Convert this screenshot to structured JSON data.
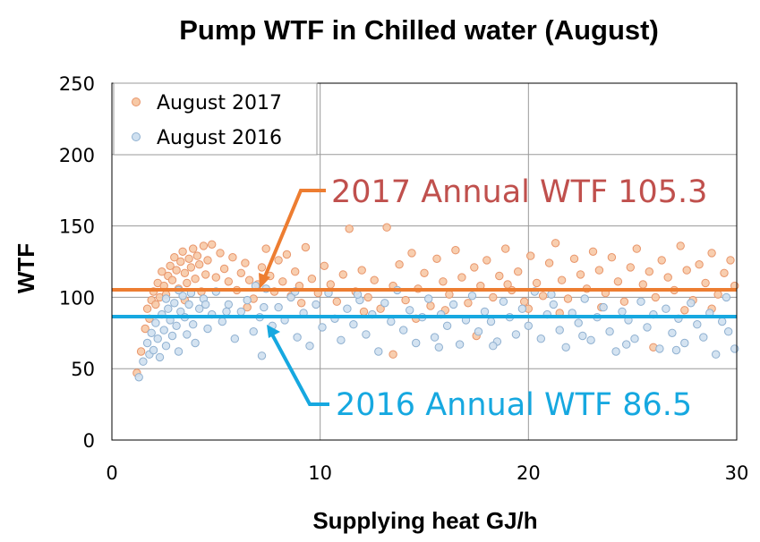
{
  "chart_data": {
    "type": "scatter",
    "title": "Pump WTF in Chilled water  (August)",
    "xlabel": "Supplying heat GJ/h",
    "ylabel": "WTF",
    "xlim": [
      0,
      30
    ],
    "ylim": [
      0,
      250
    ],
    "xticks": [
      "0",
      "10",
      "20",
      "30"
    ],
    "yticks": [
      "0",
      "50",
      "100",
      "150",
      "200",
      "250"
    ],
    "grid": true,
    "legend_position": "top-left",
    "colors": {
      "s2017_fill": "#f7c9a6",
      "s2017_edge": "#e8956a",
      "s2016_fill": "#cfe0f0",
      "s2016_edge": "#8fb0d0",
      "line2017": "#ed7d31",
      "line2016": "#16a8e0",
      "annot2017": "#c0504d",
      "annot2016": "#16a8e0",
      "grid": "#9a9a9a"
    },
    "series": [
      {
        "name": "August 2017",
        "points": [
          [
            1.2,
            47
          ],
          [
            1.4,
            62
          ],
          [
            1.6,
            78
          ],
          [
            1.7,
            92
          ],
          [
            1.8,
            85
          ],
          [
            1.9,
            98
          ],
          [
            2.0,
            104
          ],
          [
            2.1,
            95
          ],
          [
            2.2,
            110
          ],
          [
            2.3,
            100
          ],
          [
            2.4,
            118
          ],
          [
            2.5,
            108
          ],
          [
            2.6,
            102
          ],
          [
            2.7,
            115
          ],
          [
            2.8,
            122
          ],
          [
            2.9,
            112
          ],
          [
            3.0,
            128
          ],
          [
            3.1,
            119
          ],
          [
            3.2,
            106
          ],
          [
            3.3,
            125
          ],
          [
            3.4,
            132
          ],
          [
            3.5,
            117
          ],
          [
            3.6,
            110
          ],
          [
            3.7,
            127
          ],
          [
            3.8,
            121
          ],
          [
            3.9,
            134
          ],
          [
            4.0,
            113
          ],
          [
            4.1,
            129
          ],
          [
            4.2,
            123
          ],
          [
            4.4,
            136
          ],
          [
            4.5,
            116
          ],
          [
            4.6,
            126
          ],
          [
            4.8,
            137
          ],
          [
            5.0,
            114
          ],
          [
            5.2,
            131
          ],
          [
            5.4,
            120
          ],
          [
            5.6,
            111
          ],
          [
            5.8,
            128
          ],
          [
            6.0,
            105
          ],
          [
            6.2,
            117
          ],
          [
            6.4,
            124
          ],
          [
            6.6,
            112
          ],
          [
            6.8,
            99
          ],
          [
            7.0,
            109
          ],
          [
            7.2,
            121
          ],
          [
            7.4,
            134
          ],
          [
            7.6,
            115
          ],
          [
            7.8,
            104
          ],
          [
            8.0,
            126
          ],
          [
            8.2,
            111
          ],
          [
            8.4,
            130
          ],
          [
            8.6,
            101
          ],
          [
            8.8,
            118
          ],
          [
            9.0,
            108
          ],
          [
            9.3,
            135
          ],
          [
            9.6,
            113
          ],
          [
            9.9,
            103
          ],
          [
            10.2,
            122
          ],
          [
            10.5,
            109
          ],
          [
            10.8,
            97
          ],
          [
            11.1,
            116
          ],
          [
            11.4,
            148
          ],
          [
            11.7,
            104
          ],
          [
            12.0,
            119
          ],
          [
            12.3,
            100
          ],
          [
            12.6,
            112
          ],
          [
            12.9,
            92
          ],
          [
            13.2,
            149
          ],
          [
            13.5,
            108
          ],
          [
            13.8,
            123
          ],
          [
            14.1,
            98
          ],
          [
            14.4,
            131
          ],
          [
            14.7,
            106
          ],
          [
            15.0,
            117
          ],
          [
            15.3,
            94
          ],
          [
            15.6,
            127
          ],
          [
            15.9,
            111
          ],
          [
            16.2,
            102
          ],
          [
            16.5,
            133
          ],
          [
            16.8,
            114
          ],
          [
            17.1,
            96
          ],
          [
            17.4,
            121
          ],
          [
            17.7,
            108
          ],
          [
            18.0,
            126
          ],
          [
            18.3,
            100
          ],
          [
            18.6,
            115
          ],
          [
            18.9,
            134
          ],
          [
            19.2,
            105
          ],
          [
            19.5,
            118
          ],
          [
            19.8,
            97
          ],
          [
            20.1,
            129
          ],
          [
            20.4,
            110
          ],
          [
            20.7,
            101
          ],
          [
            21.0,
            124
          ],
          [
            21.3,
            138
          ],
          [
            21.6,
            112
          ],
          [
            21.9,
            99
          ],
          [
            22.2,
            127
          ],
          [
            22.5,
            116
          ],
          [
            22.8,
            106
          ],
          [
            23.1,
            132
          ],
          [
            23.4,
            119
          ],
          [
            23.7,
            103
          ],
          [
            24.0,
            128
          ],
          [
            24.3,
            111
          ],
          [
            24.6,
            97
          ],
          [
            24.9,
            121
          ],
          [
            25.2,
            134
          ],
          [
            25.5,
            109
          ],
          [
            25.8,
            118
          ],
          [
            26.1,
            100
          ],
          [
            26.4,
            126
          ],
          [
            26.7,
            114
          ],
          [
            27.0,
            105
          ],
          [
            27.3,
            136
          ],
          [
            27.6,
            119
          ],
          [
            27.9,
            98
          ],
          [
            28.2,
            123
          ],
          [
            28.5,
            110
          ],
          [
            28.8,
            131
          ],
          [
            29.1,
            102
          ],
          [
            29.4,
            117
          ],
          [
            29.7,
            126
          ],
          [
            29.9,
            108
          ],
          [
            3.5,
            98
          ],
          [
            4.3,
            104
          ],
          [
            6.5,
            93
          ],
          [
            9.1,
            96
          ],
          [
            12.1,
            90
          ],
          [
            16.0,
            91
          ],
          [
            20.0,
            92
          ],
          [
            23.5,
            93
          ],
          [
            27.5,
            91
          ],
          [
            13.5,
            60
          ],
          [
            17.5,
            73
          ],
          [
            26.0,
            65
          ],
          [
            28.8,
            92
          ],
          [
            21.5,
            89
          ],
          [
            14.6,
            85
          ],
          [
            19.0,
            109
          ]
        ]
      },
      {
        "name": "August 2016",
        "points": [
          [
            1.3,
            44
          ],
          [
            1.5,
            55
          ],
          [
            1.7,
            68
          ],
          [
            1.8,
            60
          ],
          [
            1.9,
            75
          ],
          [
            2.0,
            63
          ],
          [
            2.1,
            82
          ],
          [
            2.2,
            71
          ],
          [
            2.3,
            58
          ],
          [
            2.4,
            88
          ],
          [
            2.5,
            77
          ],
          [
            2.6,
            66
          ],
          [
            2.7,
            92
          ],
          [
            2.8,
            84
          ],
          [
            2.9,
            73
          ],
          [
            3.0,
            96
          ],
          [
            3.1,
            80
          ],
          [
            3.2,
            62
          ],
          [
            3.3,
            90
          ],
          [
            3.4,
            101
          ],
          [
            3.5,
            86
          ],
          [
            3.6,
            74
          ],
          [
            3.7,
            95
          ],
          [
            3.8,
            103
          ],
          [
            3.9,
            81
          ],
          [
            4.0,
            68
          ],
          [
            4.2,
            92
          ],
          [
            4.4,
            99
          ],
          [
            4.6,
            78
          ],
          [
            4.8,
            88
          ],
          [
            5.0,
            104
          ],
          [
            5.3,
            83
          ],
          [
            5.6,
            95
          ],
          [
            5.9,
            71
          ],
          [
            6.2,
            90
          ],
          [
            6.5,
            98
          ],
          [
            6.8,
            76
          ],
          [
            7.1,
            86
          ],
          [
            7.4,
            106
          ],
          [
            7.7,
            80
          ],
          [
            8.0,
            93
          ],
          [
            8.3,
            84
          ],
          [
            8.6,
            100
          ],
          [
            8.9,
            72
          ],
          [
            9.2,
            89
          ],
          [
            9.5,
            66
          ],
          [
            9.8,
            95
          ],
          [
            10.1,
            79
          ],
          [
            10.4,
            103
          ],
          [
            10.7,
            85
          ],
          [
            11.0,
            70
          ],
          [
            11.3,
            92
          ],
          [
            11.6,
            81
          ],
          [
            11.9,
            98
          ],
          [
            12.2,
            74
          ],
          [
            12.5,
            88
          ],
          [
            12.8,
            62
          ],
          [
            13.1,
            96
          ],
          [
            13.4,
            83
          ],
          [
            13.7,
            105
          ],
          [
            14.0,
            77
          ],
          [
            14.3,
            91
          ],
          [
            14.6,
            68
          ],
          [
            14.9,
            86
          ],
          [
            15.2,
            99
          ],
          [
            15.5,
            72
          ],
          [
            15.8,
            88
          ],
          [
            16.1,
            80
          ],
          [
            16.4,
            95
          ],
          [
            16.7,
            67
          ],
          [
            17.0,
            84
          ],
          [
            17.3,
            101
          ],
          [
            17.6,
            76
          ],
          [
            17.9,
            90
          ],
          [
            18.2,
            83
          ],
          [
            18.5,
            69
          ],
          [
            18.8,
            97
          ],
          [
            19.1,
            86
          ],
          [
            19.4,
            74
          ],
          [
            19.7,
            92
          ],
          [
            20.0,
            80
          ],
          [
            20.3,
            104
          ],
          [
            20.6,
            71
          ],
          [
            20.9,
            88
          ],
          [
            21.2,
            95
          ],
          [
            21.5,
            77
          ],
          [
            21.8,
            65
          ],
          [
            22.1,
            89
          ],
          [
            22.4,
            82
          ],
          [
            22.7,
            99
          ],
          [
            23.0,
            70
          ],
          [
            23.3,
            86
          ],
          [
            23.6,
            93
          ],
          [
            23.9,
            76
          ],
          [
            24.2,
            62
          ],
          [
            24.5,
            90
          ],
          [
            24.8,
            84
          ],
          [
            25.1,
            71
          ],
          [
            25.4,
            97
          ],
          [
            25.7,
            79
          ],
          [
            26.0,
            88
          ],
          [
            26.3,
            64
          ],
          [
            26.6,
            92
          ],
          [
            26.9,
            75
          ],
          [
            27.2,
            85
          ],
          [
            27.5,
            68
          ],
          [
            27.8,
            96
          ],
          [
            28.1,
            81
          ],
          [
            28.4,
            72
          ],
          [
            28.7,
            89
          ],
          [
            29.0,
            60
          ],
          [
            29.3,
            83
          ],
          [
            29.6,
            76
          ],
          [
            29.9,
            64
          ],
          [
            2.6,
            99
          ],
          [
            3.2,
            105
          ],
          [
            4.5,
            95
          ],
          [
            5.5,
            90
          ],
          [
            6.9,
            108
          ],
          [
            7.3,
            93
          ],
          [
            8.8,
            104
          ],
          [
            11.8,
            102
          ],
          [
            15.7,
            65
          ],
          [
            18.3,
            66
          ],
          [
            21.1,
            102
          ],
          [
            24.7,
            67
          ],
          [
            27.1,
            63
          ],
          [
            29.5,
            100
          ],
          [
            7.2,
            59
          ],
          [
            22.6,
            73
          ]
        ]
      }
    ],
    "annotations": [
      {
        "name": "2017 Annual WTF",
        "label": "2017 Annual WTF 105.3",
        "value": 105.3
      },
      {
        "name": "2016 Annual WTF",
        "label": "2016 Annual WTF 86.5",
        "value": 86.5
      }
    ]
  }
}
